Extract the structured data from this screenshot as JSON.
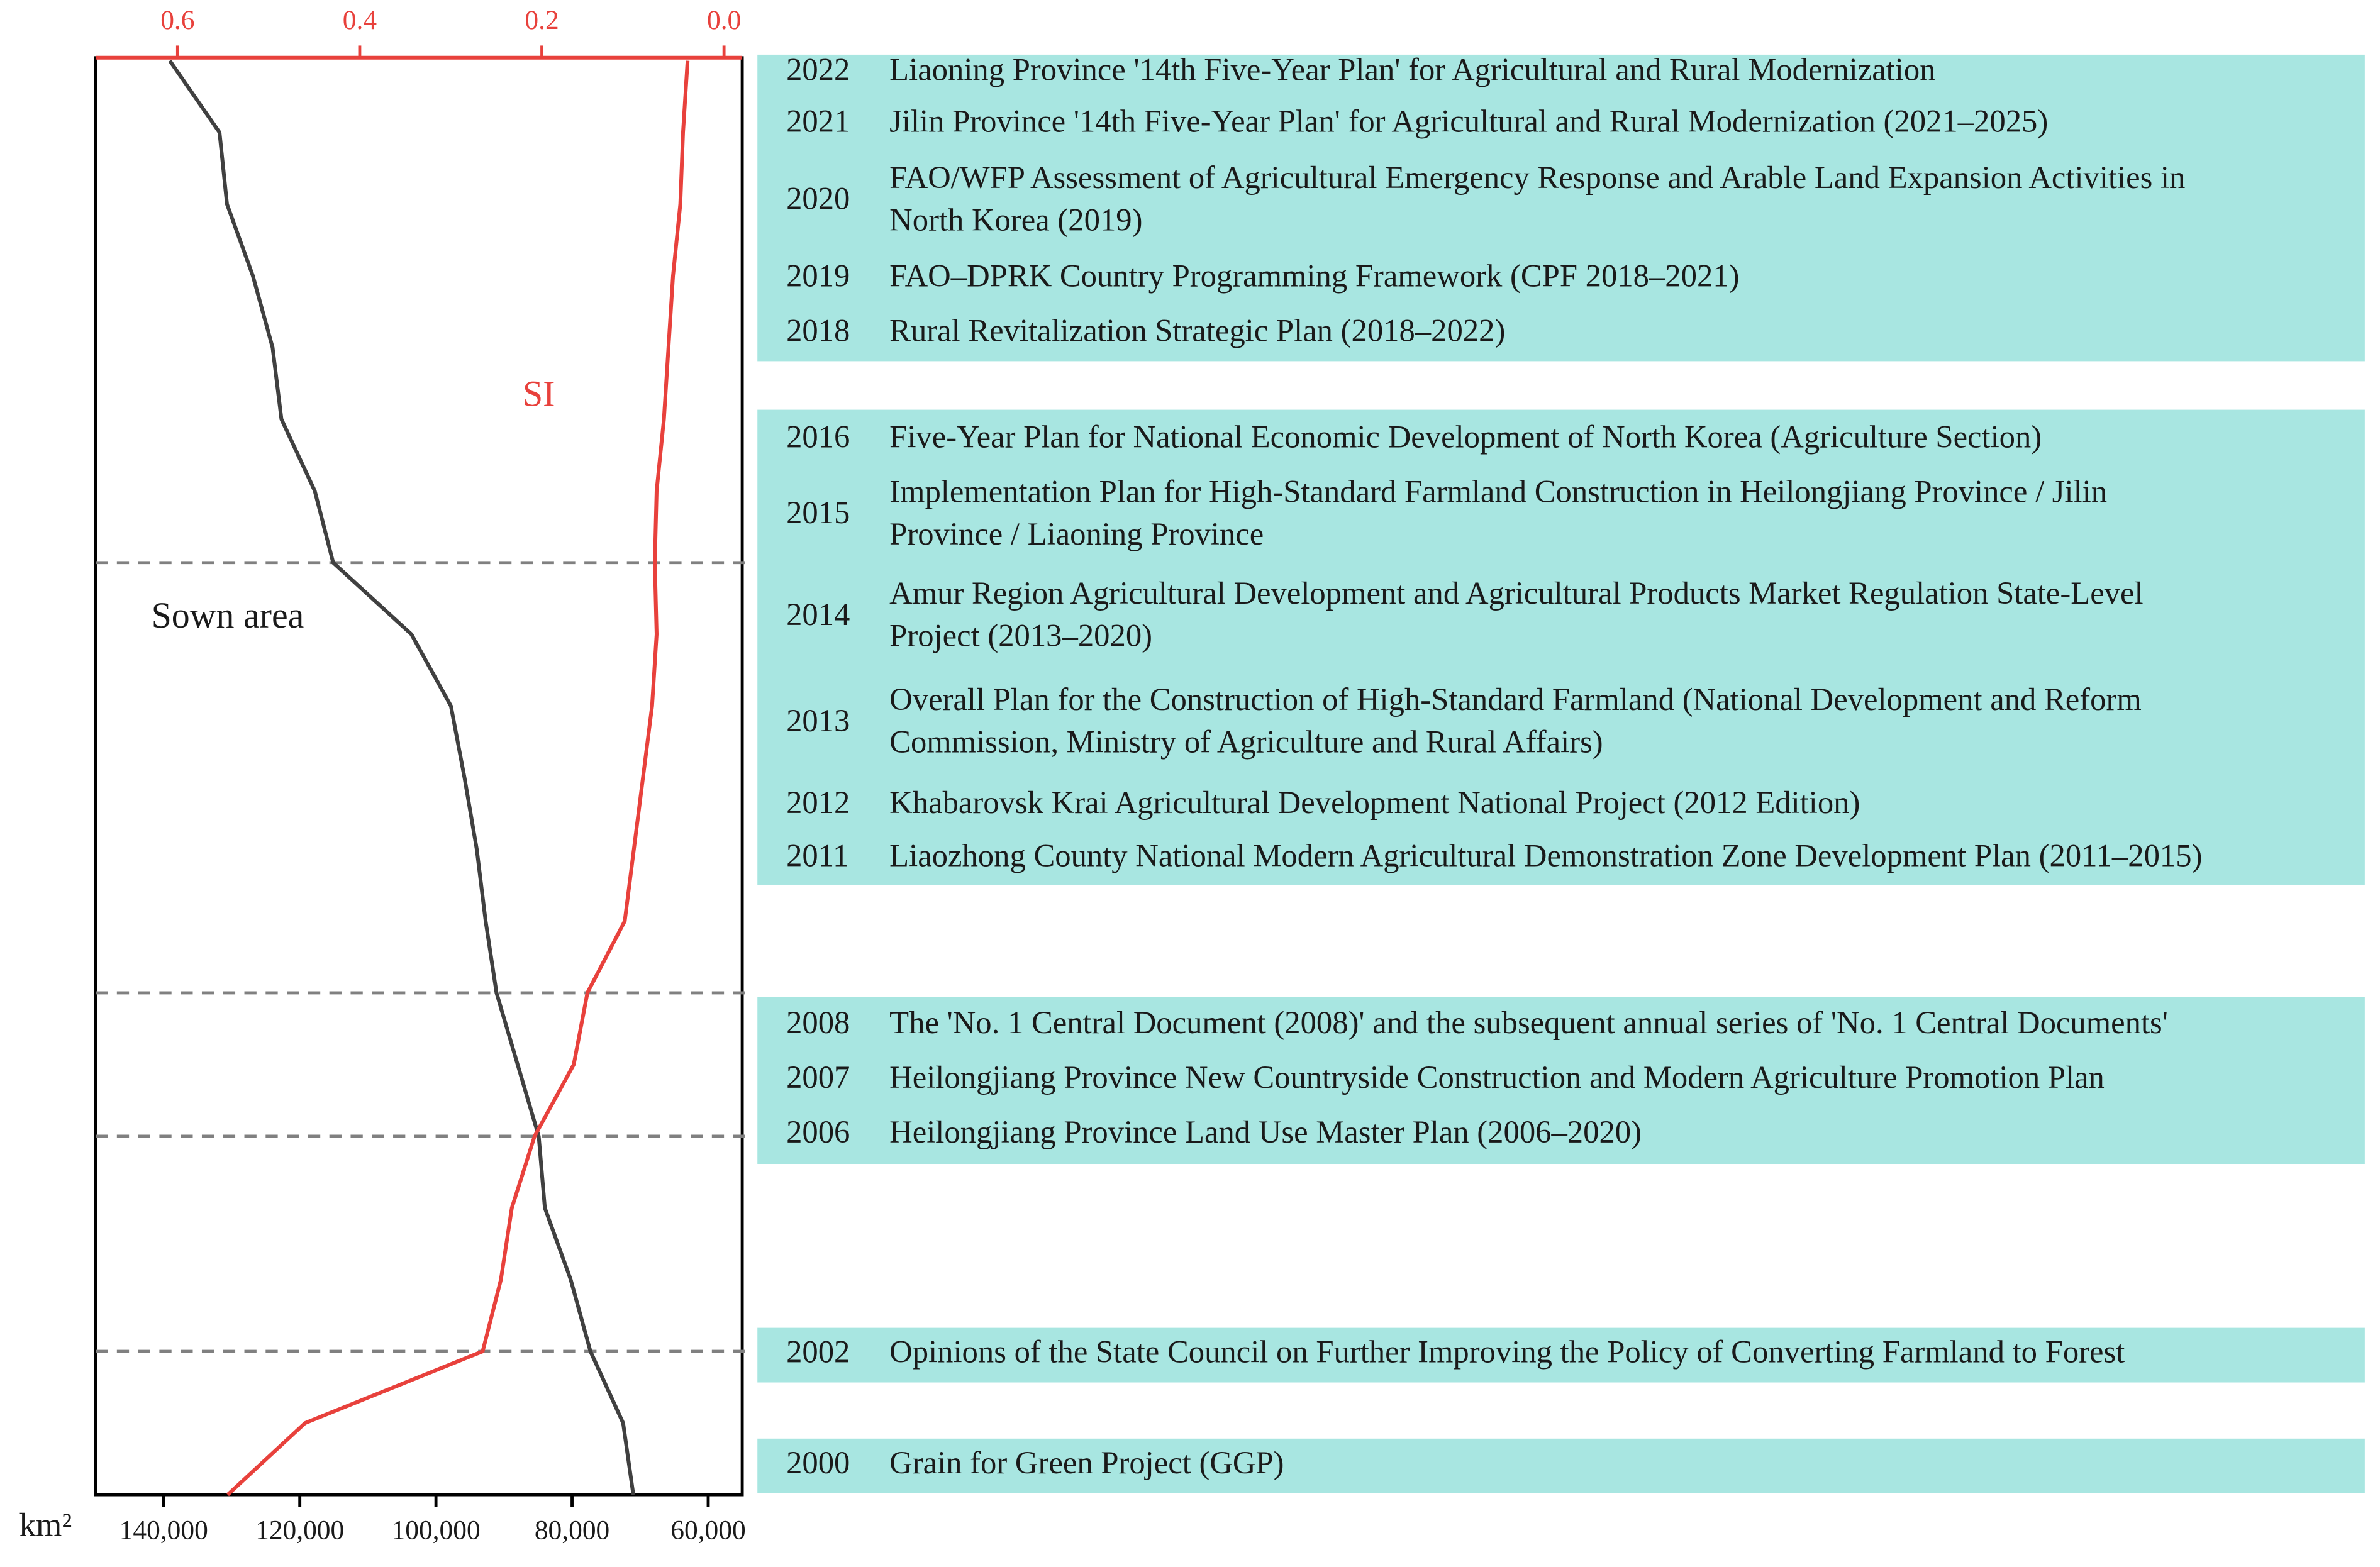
{
  "chart_data": {
    "type": "line",
    "x_label": "km²",
    "y": [
      2002,
      2003,
      2004,
      2005,
      2006,
      2007,
      2008,
      2009,
      2010,
      2011,
      2012,
      2013,
      2014,
      2015,
      2016,
      2017,
      2018,
      2019,
      2020,
      2021,
      2022
    ],
    "ylim": [
      2002,
      2022
    ],
    "xlim": [
      150000,
      55000
    ],
    "xticks": [
      {
        "value": 140000,
        "label": "140,000"
      },
      {
        "value": 120000,
        "label": "120,000"
      },
      {
        "value": 100000,
        "label": "100,000"
      },
      {
        "value": 80000,
        "label": "80,000"
      },
      {
        "value": 60000,
        "label": "60,000"
      }
    ],
    "x2lim": [
      0.69,
      -0.02
    ],
    "x2ticks": [
      0.6,
      0.4,
      0.2,
      {
        "value": 0,
        "label": "0.0"
      }
    ],
    "dividers": [
      2004,
      2007,
      2009,
      2015
    ],
    "series": [
      {
        "name": "Sown area",
        "color": "#404040",
        "axis": "x",
        "values": [
          71000,
          72500,
          77300,
          80200,
          84000,
          84900,
          88000,
          91100,
          92700,
          94000,
          95800,
          97800,
          103600,
          115100,
          117800,
          122700,
          124000,
          126900,
          130700,
          131800,
          139100
        ]
      },
      {
        "name": "SI",
        "color": "#e8413c",
        "axis": "x2",
        "values": [
          0.545,
          0.46,
          0.265,
          0.245,
          0.233,
          0.208,
          0.165,
          0.15,
          0.109,
          0.099,
          0.089,
          0.079,
          0.074,
          0.076,
          0.074,
          0.066,
          0.061,
          0.056,
          0.048,
          0.045,
          0.04
        ]
      }
    ]
  },
  "table": {
    "groups": [
      [
        {
          "year": "2022",
          "lines": [
            "Liaoning Province '14th Five-Year Plan' for Agricultural and Rural Modernization"
          ]
        },
        {
          "year": "2021",
          "lines": [
            "Jilin Province '14th Five-Year Plan' for Agricultural and Rural Modernization (2021–2025)"
          ]
        },
        {
          "year": "2020",
          "lines": [
            "FAO/WFP Assessment of Agricultural Emergency Response and Arable Land Expansion Activities in",
            "North Korea (2019)"
          ]
        },
        {
          "year": "2019",
          "lines": [
            "FAO–DPRK Country Programming Framework (CPF 2018–2021)"
          ]
        },
        {
          "year": "2018",
          "lines": [
            "Rural Revitalization Strategic Plan (2018–2022)"
          ]
        }
      ],
      [
        {
          "year": "2016",
          "lines": [
            "Five-Year Plan for National Economic Development of North Korea (Agriculture Section)"
          ]
        },
        {
          "year": "2015",
          "lines": [
            "Implementation Plan for High-Standard Farmland Construction in Heilongjiang Province / Jilin",
            "Province / Liaoning Province"
          ]
        },
        {
          "year": "2014",
          "lines": [
            "Amur Region Agricultural Development and Agricultural Products Market Regulation State-Level",
            "Project (2013–2020)"
          ]
        },
        {
          "year": "2013",
          "lines": [
            "Overall Plan for the Construction of High-Standard Farmland (National Development and Reform",
            "Commission, Ministry of Agriculture and Rural Affairs)"
          ]
        },
        {
          "year": "2012",
          "lines": [
            "Khabarovsk Krai Agricultural Development National Project (2012 Edition)"
          ]
        },
        {
          "year": "2011",
          "lines": [
            "Liaozhong County National Modern Agricultural Demonstration Zone Development Plan (2011–2015)"
          ]
        }
      ],
      [
        {
          "year": "2008",
          "lines": [
            "The 'No. 1 Central Document (2008)' and the subsequent annual series of 'No. 1 Central Documents'"
          ]
        },
        {
          "year": "2007",
          "lines": [
            "Heilongjiang Province New Countryside Construction and Modern Agriculture Promotion Plan"
          ]
        },
        {
          "year": "2006",
          "lines": [
            "Heilongjiang Province Land Use Master Plan (2006–2020)"
          ]
        }
      ],
      [
        {
          "year": "2002",
          "lines": [
            "Opinions of the State Council on Further Improving the Policy of Converting Farmland to Forest"
          ]
        }
      ],
      [
        {
          "year": "2000",
          "lines": [
            "Grain for Green Project (GGP)"
          ]
        }
      ]
    ]
  }
}
